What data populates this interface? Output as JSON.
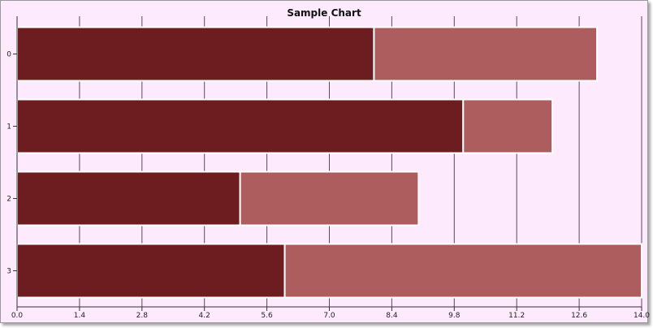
{
  "chart_data": {
    "type": "bar",
    "orientation": "horizontal",
    "stacked": true,
    "title": "Sample Chart",
    "xlabel": "",
    "ylabel": "",
    "categories": [
      "0",
      "1",
      "2",
      "3"
    ],
    "series": [
      {
        "values": [
          8,
          10,
          5,
          6
        ],
        "color": "#6d1c1f"
      },
      {
        "values": [
          5,
          2,
          4,
          8
        ],
        "color": "#ae5d5e"
      }
    ],
    "xlim": [
      0,
      14
    ],
    "x_ticks": [
      "0.0",
      "1.4",
      "2.8",
      "4.2",
      "5.6",
      "7.0",
      "8.4",
      "9.8",
      "11.2",
      "12.6",
      "14.0"
    ],
    "grid": true,
    "legend": "none"
  },
  "colors": {
    "background": "#fdeafd",
    "gridline": "#5a4a5a",
    "bar_border": "#ffffff"
  }
}
